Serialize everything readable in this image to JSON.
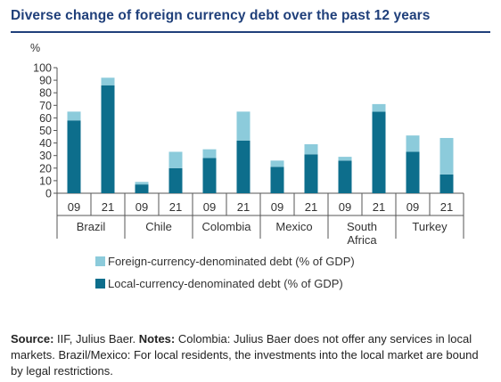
{
  "title": "Diverse change of foreign currency debt over the past 12 years",
  "y_unit": "%",
  "chart_data": {
    "type": "bar",
    "stacked": true,
    "groups": [
      "Brazil",
      "Chile",
      "Colombia",
      "Mexico",
      "South Africa",
      "Turkey"
    ],
    "group_label_lines": [
      [
        "Brazil"
      ],
      [
        "Chile"
      ],
      [
        "Colombia"
      ],
      [
        "Mexico"
      ],
      [
        "South",
        "Africa"
      ],
      [
        "Turkey"
      ]
    ],
    "categories": [
      "09",
      "21",
      "09",
      "21",
      "09",
      "21",
      "09",
      "21",
      "09",
      "21",
      "09",
      "21"
    ],
    "series": [
      {
        "name": "Local-currency-denominated debt (% of GDP)",
        "color": "#0d6e8c",
        "values": [
          58,
          86,
          7,
          20,
          28,
          42,
          21,
          31,
          26,
          65,
          33,
          15
        ]
      },
      {
        "name": "Foreign-currency-denominated debt (% of GDP)",
        "color": "#8ccbdb",
        "values": [
          7,
          6,
          2,
          13,
          7,
          23,
          5,
          8,
          3,
          6,
          13,
          29
        ]
      }
    ],
    "ylim": [
      0,
      100
    ],
    "yticks": [
      0,
      10,
      20,
      30,
      40,
      50,
      60,
      70,
      80,
      90,
      100
    ],
    "legend_position": "bottom",
    "legend_order": [
      1,
      0
    ]
  },
  "source": {
    "source_label": "Source:",
    "source_text": " IIF, Julius Baer. ",
    "notes_label": "Notes:",
    "notes_text": " Colombia: Julius Baer does not offer any services in local markets. Brazil/Mexico: For local residents, the investments into the local market are bound by legal restrictions."
  }
}
